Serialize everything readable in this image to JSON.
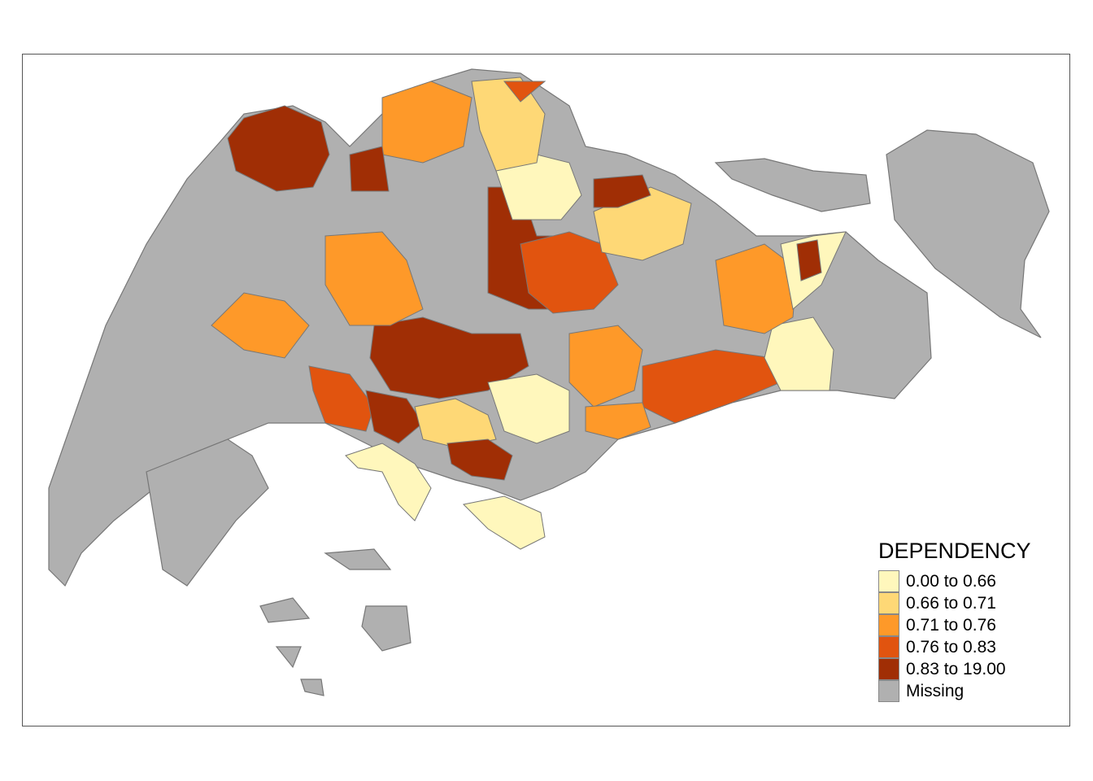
{
  "legend": {
    "title": "DEPENDENCY",
    "classes": [
      {
        "label": "0.00 to 0.66",
        "color": "#FFF7BC"
      },
      {
        "label": "0.66 to 0.71",
        "color": "#FED876"
      },
      {
        "label": "0.71 to 0.76",
        "color": "#FE9929"
      },
      {
        "label": "0.76 to 0.83",
        "color": "#E1540F"
      },
      {
        "label": "0.83 to 19.00",
        "color": "#A02E05"
      },
      {
        "label": "Missing",
        "color": "#B0B0B0"
      }
    ]
  },
  "colors": {
    "border": "#7a7a7a",
    "missing": "#B0B0B0"
  }
}
